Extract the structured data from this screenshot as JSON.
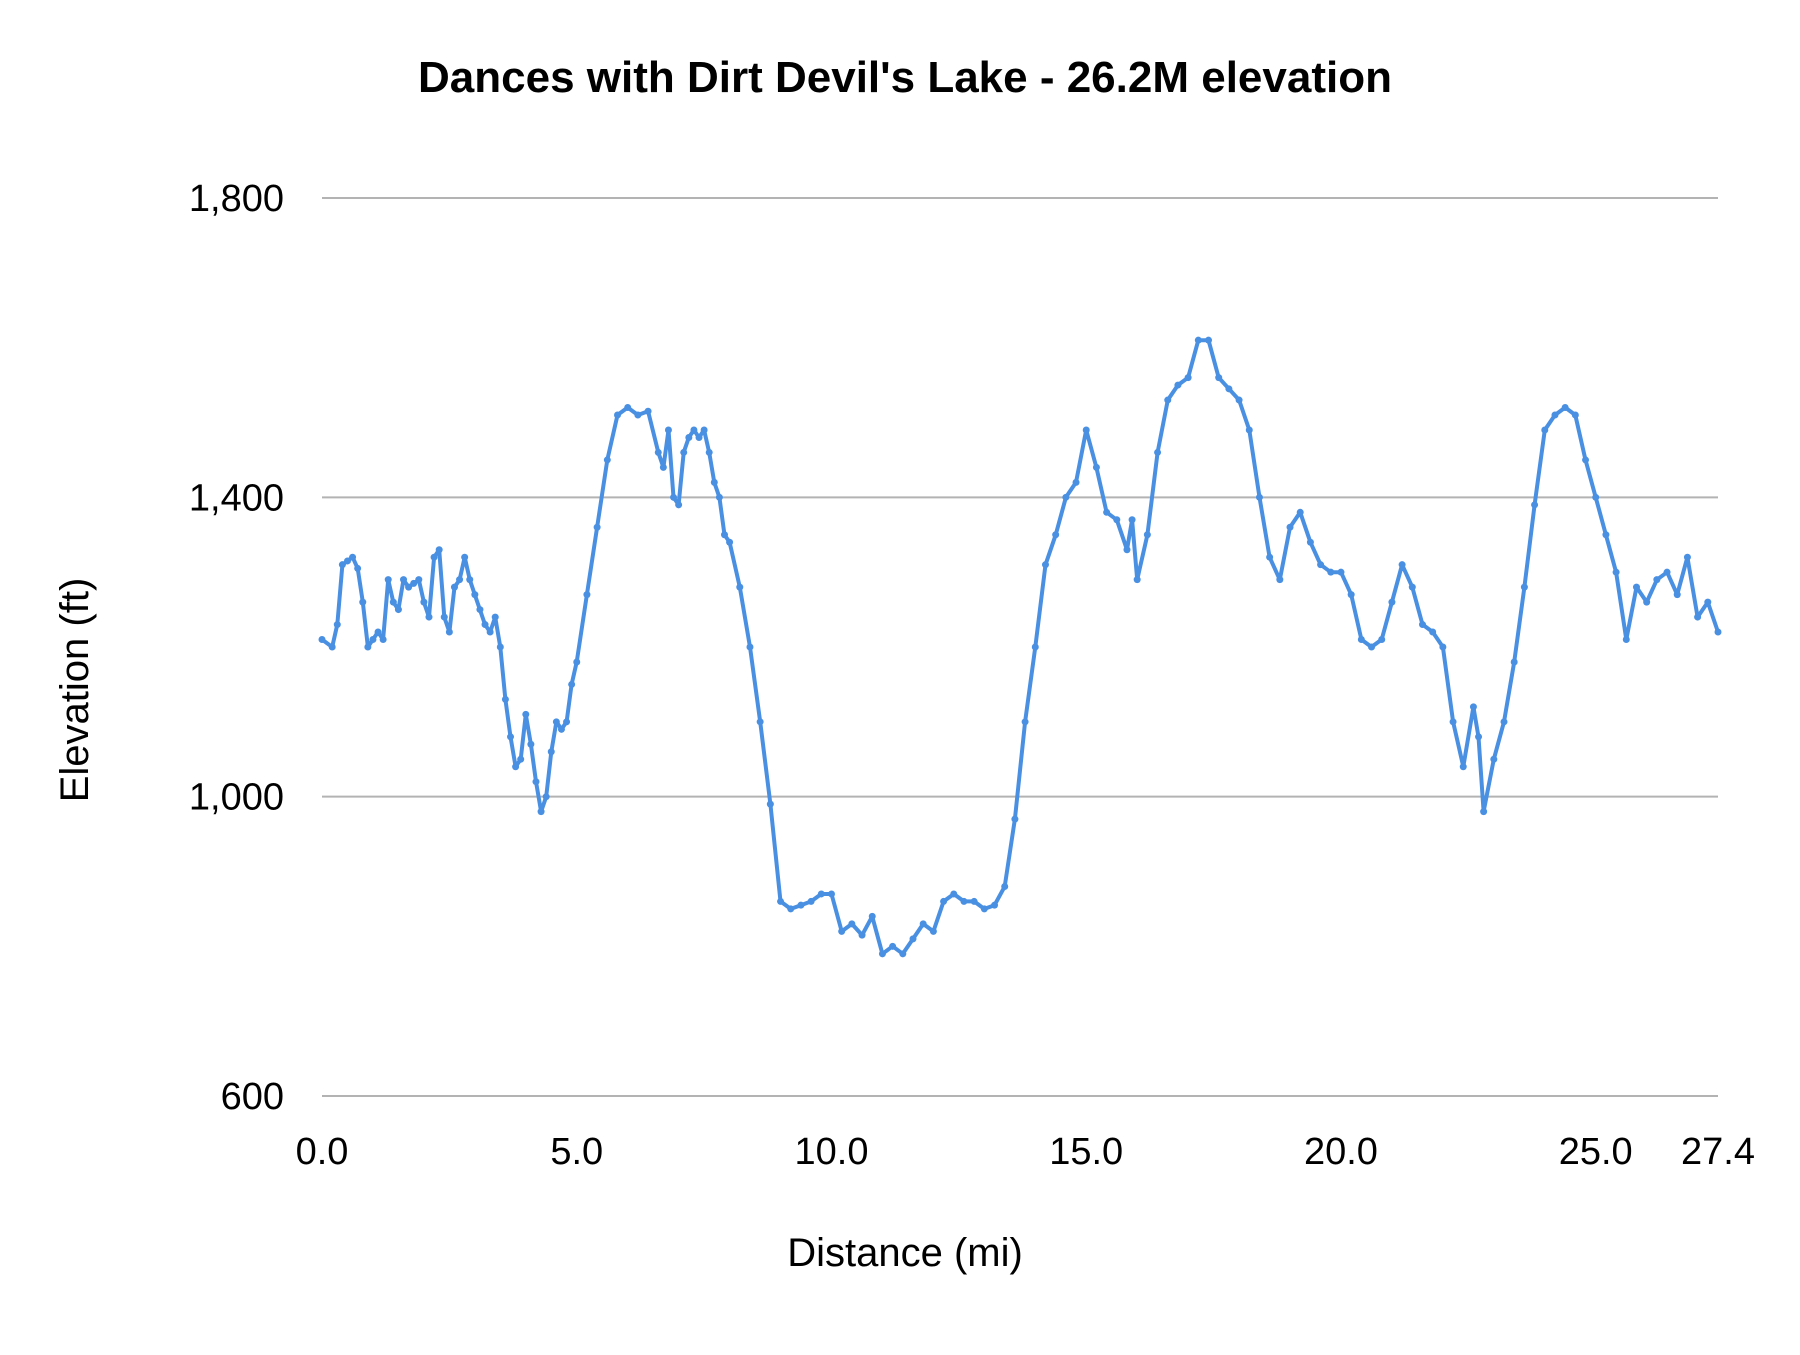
{
  "chart_data": {
    "type": "line",
    "title": "Dances with Dirt Devil's Lake - 26.2M elevation",
    "xlabel": "Distance (mi)",
    "ylabel": "Elevation (ft)",
    "xlim": [
      0,
      27.4
    ],
    "ylim": [
      600,
      1800
    ],
    "x_ticks": [
      0,
      5,
      10,
      15,
      20,
      25,
      27.4
    ],
    "x_tick_labels": [
      "0.0",
      "5.0",
      "10.0",
      "15.0",
      "20.0",
      "25.0",
      "27.4"
    ],
    "y_ticks": [
      600,
      1000,
      1400,
      1800
    ],
    "y_tick_labels": [
      "600",
      "1,000",
      "1,400",
      "1,800"
    ],
    "grid": "horizontal",
    "legend": "none",
    "series": [
      {
        "color": "#4a90e2",
        "x": [
          0.0,
          0.2,
          0.3,
          0.4,
          0.5,
          0.6,
          0.7,
          0.8,
          0.9,
          1.0,
          1.1,
          1.2,
          1.3,
          1.4,
          1.5,
          1.6,
          1.7,
          1.8,
          1.9,
          2.0,
          2.1,
          2.2,
          2.3,
          2.4,
          2.5,
          2.6,
          2.7,
          2.8,
          2.9,
          3.0,
          3.1,
          3.2,
          3.3,
          3.4,
          3.5,
          3.6,
          3.7,
          3.8,
          3.9,
          4.0,
          4.1,
          4.2,
          4.3,
          4.4,
          4.5,
          4.6,
          4.7,
          4.8,
          4.9,
          5.0,
          5.2,
          5.4,
          5.6,
          5.8,
          6.0,
          6.2,
          6.4,
          6.6,
          6.7,
          6.8,
          6.9,
          7.0,
          7.1,
          7.2,
          7.3,
          7.4,
          7.5,
          7.6,
          7.7,
          7.8,
          7.9,
          8.0,
          8.2,
          8.4,
          8.6,
          8.8,
          9.0,
          9.2,
          9.4,
          9.6,
          9.8,
          10.0,
          10.2,
          10.4,
          10.6,
          10.8,
          11.0,
          11.2,
          11.4,
          11.6,
          11.8,
          12.0,
          12.2,
          12.4,
          12.6,
          12.8,
          13.0,
          13.2,
          13.4,
          13.6,
          13.8,
          14.0,
          14.2,
          14.4,
          14.6,
          14.8,
          15.0,
          15.2,
          15.4,
          15.6,
          15.8,
          15.9,
          16.0,
          16.2,
          16.4,
          16.6,
          16.8,
          17.0,
          17.2,
          17.4,
          17.6,
          17.8,
          18.0,
          18.2,
          18.4,
          18.6,
          18.8,
          19.0,
          19.2,
          19.4,
          19.6,
          19.8,
          20.0,
          20.2,
          20.4,
          20.6,
          20.8,
          21.0,
          21.2,
          21.4,
          21.6,
          21.8,
          22.0,
          22.2,
          22.4,
          22.6,
          22.7,
          22.8,
          23.0,
          23.2,
          23.4,
          23.6,
          23.8,
          24.0,
          24.2,
          24.4,
          24.6,
          24.8,
          25.0,
          25.2,
          25.4,
          25.6,
          25.8,
          26.0,
          26.2,
          26.4,
          26.6,
          26.8,
          27.0,
          27.2,
          27.4
        ],
        "y": [
          1210,
          1200,
          1230,
          1310,
          1315,
          1320,
          1305,
          1260,
          1200,
          1210,
          1220,
          1210,
          1290,
          1260,
          1250,
          1290,
          1280,
          1285,
          1290,
          1260,
          1240,
          1320,
          1330,
          1240,
          1220,
          1280,
          1290,
          1320,
          1290,
          1270,
          1250,
          1230,
          1220,
          1240,
          1200,
          1130,
          1080,
          1040,
          1050,
          1110,
          1070,
          1020,
          980,
          1000,
          1060,
          1100,
          1090,
          1100,
          1150,
          1180,
          1270,
          1360,
          1450,
          1510,
          1520,
          1510,
          1515,
          1460,
          1440,
          1490,
          1400,
          1390,
          1460,
          1480,
          1490,
          1480,
          1490,
          1460,
          1420,
          1400,
          1350,
          1340,
          1280,
          1200,
          1100,
          990,
          860,
          850,
          855,
          860,
          870,
          870,
          820,
          830,
          815,
          840,
          790,
          800,
          790,
          810,
          830,
          820,
          860,
          870,
          860,
          860,
          850,
          855,
          880,
          970,
          1100,
          1200,
          1310,
          1350,
          1400,
          1420,
          1490,
          1440,
          1380,
          1370,
          1330,
          1370,
          1290,
          1350,
          1460,
          1530,
          1550,
          1560,
          1610,
          1610,
          1560,
          1545,
          1530,
          1490,
          1400,
          1320,
          1290,
          1360,
          1380,
          1340,
          1310,
          1300,
          1300,
          1270,
          1210,
          1200,
          1210,
          1260,
          1310,
          1280,
          1230,
          1220,
          1200,
          1100,
          1040,
          1120,
          1080,
          980,
          1050,
          1100,
          1180,
          1280,
          1390,
          1490,
          1510,
          1520,
          1510,
          1450,
          1400,
          1350,
          1300,
          1210,
          1280,
          1260,
          1290,
          1300,
          1270,
          1320,
          1240,
          1260,
          1220
        ]
      }
    ]
  }
}
